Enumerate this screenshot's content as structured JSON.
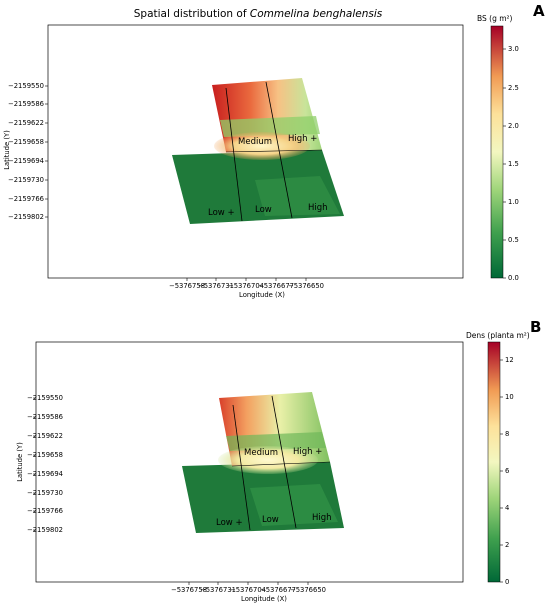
{
  "chart_data": [
    {
      "type": "heatmap",
      "panel_letter": "A",
      "title_prefix": "Spatial distribution of ",
      "title_species": "Commelina benghalensis",
      "xlabel": "Longitude (X)",
      "ylabel": "Latitude  (Y)",
      "x_ticks": [
        "−5376758",
        "−5376731",
        "−5376704",
        "−5376677",
        "−5376650"
      ],
      "y_ticks": [
        "−2159550",
        "−2159586",
        "−2159622",
        "−2159658",
        "−2159694",
        "−2159730",
        "−2159766",
        "−2159802"
      ],
      "colorbar": {
        "label": "BS (g m²)",
        "min": 0.0,
        "max": 3.3,
        "ticks": [
          "0.0",
          "0.5",
          "1.0",
          "1.5",
          "2.0",
          "2.5",
          "3.0"
        ]
      },
      "zones": [
        "Medium",
        "High +",
        "Low +",
        "Low",
        "High"
      ]
    },
    {
      "type": "heatmap",
      "panel_letter": "B",
      "xlabel": "Longitude (X)",
      "ylabel": "Latitude  (Y)",
      "x_ticks": [
        "−5376758",
        "−5376731",
        "−5376704",
        "−5376677",
        "−5376650"
      ],
      "y_ticks": [
        "−2159550",
        "−2159586",
        "−2159622",
        "−2159658",
        "−2159694",
        "−2159730",
        "−2159766",
        "−2159802"
      ],
      "colorbar": {
        "label": "Dens (planta m²)",
        "min": 0,
        "max": 13,
        "ticks": [
          "0",
          "2",
          "4",
          "6",
          "8",
          "10",
          "12"
        ]
      },
      "zones": [
        "Medium",
        "High +",
        "Low +",
        "Low",
        "High"
      ]
    }
  ],
  "colors": {
    "dark_green": "#1f7a3a",
    "mid_green": "#3fa04e",
    "light_green": "#8fcf6a",
    "pale_yellow": "#fbf2b8",
    "orange": "#f0a35c",
    "red": "#c81e1e",
    "dark_red": "#8c1016"
  }
}
